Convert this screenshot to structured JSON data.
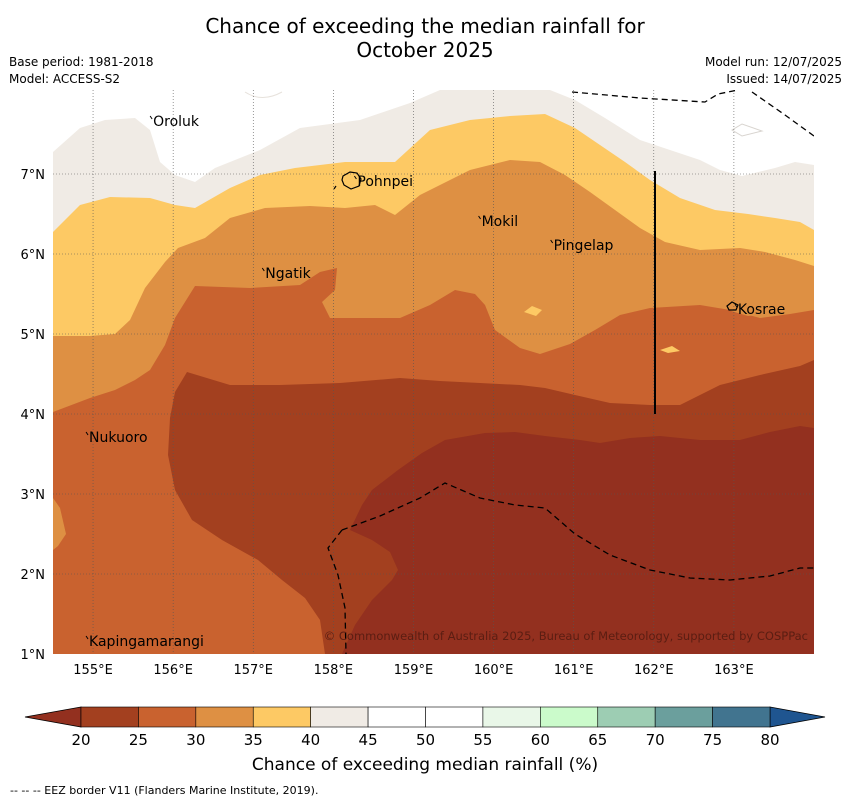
{
  "title_line1": "Chance of exceeding the median rainfall for",
  "title_line2": "October 2025",
  "meta_left": [
    "Base period: 1981-2018",
    "Model: ACCESS-S2"
  ],
  "meta_right": [
    "Model run: 12/07/2025",
    "Issued: 14/07/2025"
  ],
  "lon_ticks": [
    "155°E",
    "156°E",
    "157°E",
    "158°E",
    "159°E",
    "160°E",
    "161°E",
    "162°E",
    "163°E"
  ],
  "lat_ticks": [
    "1°N",
    "2°N",
    "3°N",
    "4°N",
    "5°N",
    "6°N",
    "7°N"
  ],
  "places": [
    {
      "name": "Oroluk",
      "lon": 155.75,
      "lat": 7.6
    },
    {
      "name": "Pohnpei",
      "lon": 158.3,
      "lat": 6.85
    },
    {
      "name": "Mokil",
      "lon": 159.85,
      "lat": 6.35
    },
    {
      "name": "Pingelap",
      "lon": 160.75,
      "lat": 6.05
    },
    {
      "name": "Ngatik",
      "lon": 157.15,
      "lat": 5.7
    },
    {
      "name": "Kosrae",
      "lon": 163.05,
      "lat": 5.25
    },
    {
      "name": "Nukuoro",
      "lon": 154.95,
      "lat": 3.65
    },
    {
      "name": "Kapingamarangi",
      "lon": 154.95,
      "lat": 1.1
    }
  ],
  "copyright": "© Commonwealth of Australia 2025, Bureau of Meteorology, supported by COSPPac",
  "colorbar": {
    "ticks": [
      "20",
      "25",
      "30",
      "35",
      "40",
      "45",
      "50",
      "55",
      "60",
      "65",
      "70",
      "75",
      "80"
    ],
    "colors": [
      "#a3401f",
      "#c9622f",
      "#de9043",
      "#fdc964",
      "#f0ebe5",
      "#ffffff",
      "#ffffff",
      "#e9f7e8",
      "#cbfbcb",
      "#9dcdb3",
      "#6b9f9d",
      "#41748f"
    ],
    "under_color": "#93301f",
    "over_color": "#1f5590",
    "label": "Chance of exceeding median rainfall (%)"
  },
  "footer": "--  --  -- EEZ border V11 (Flanders Marine Institute, 2019)."
}
